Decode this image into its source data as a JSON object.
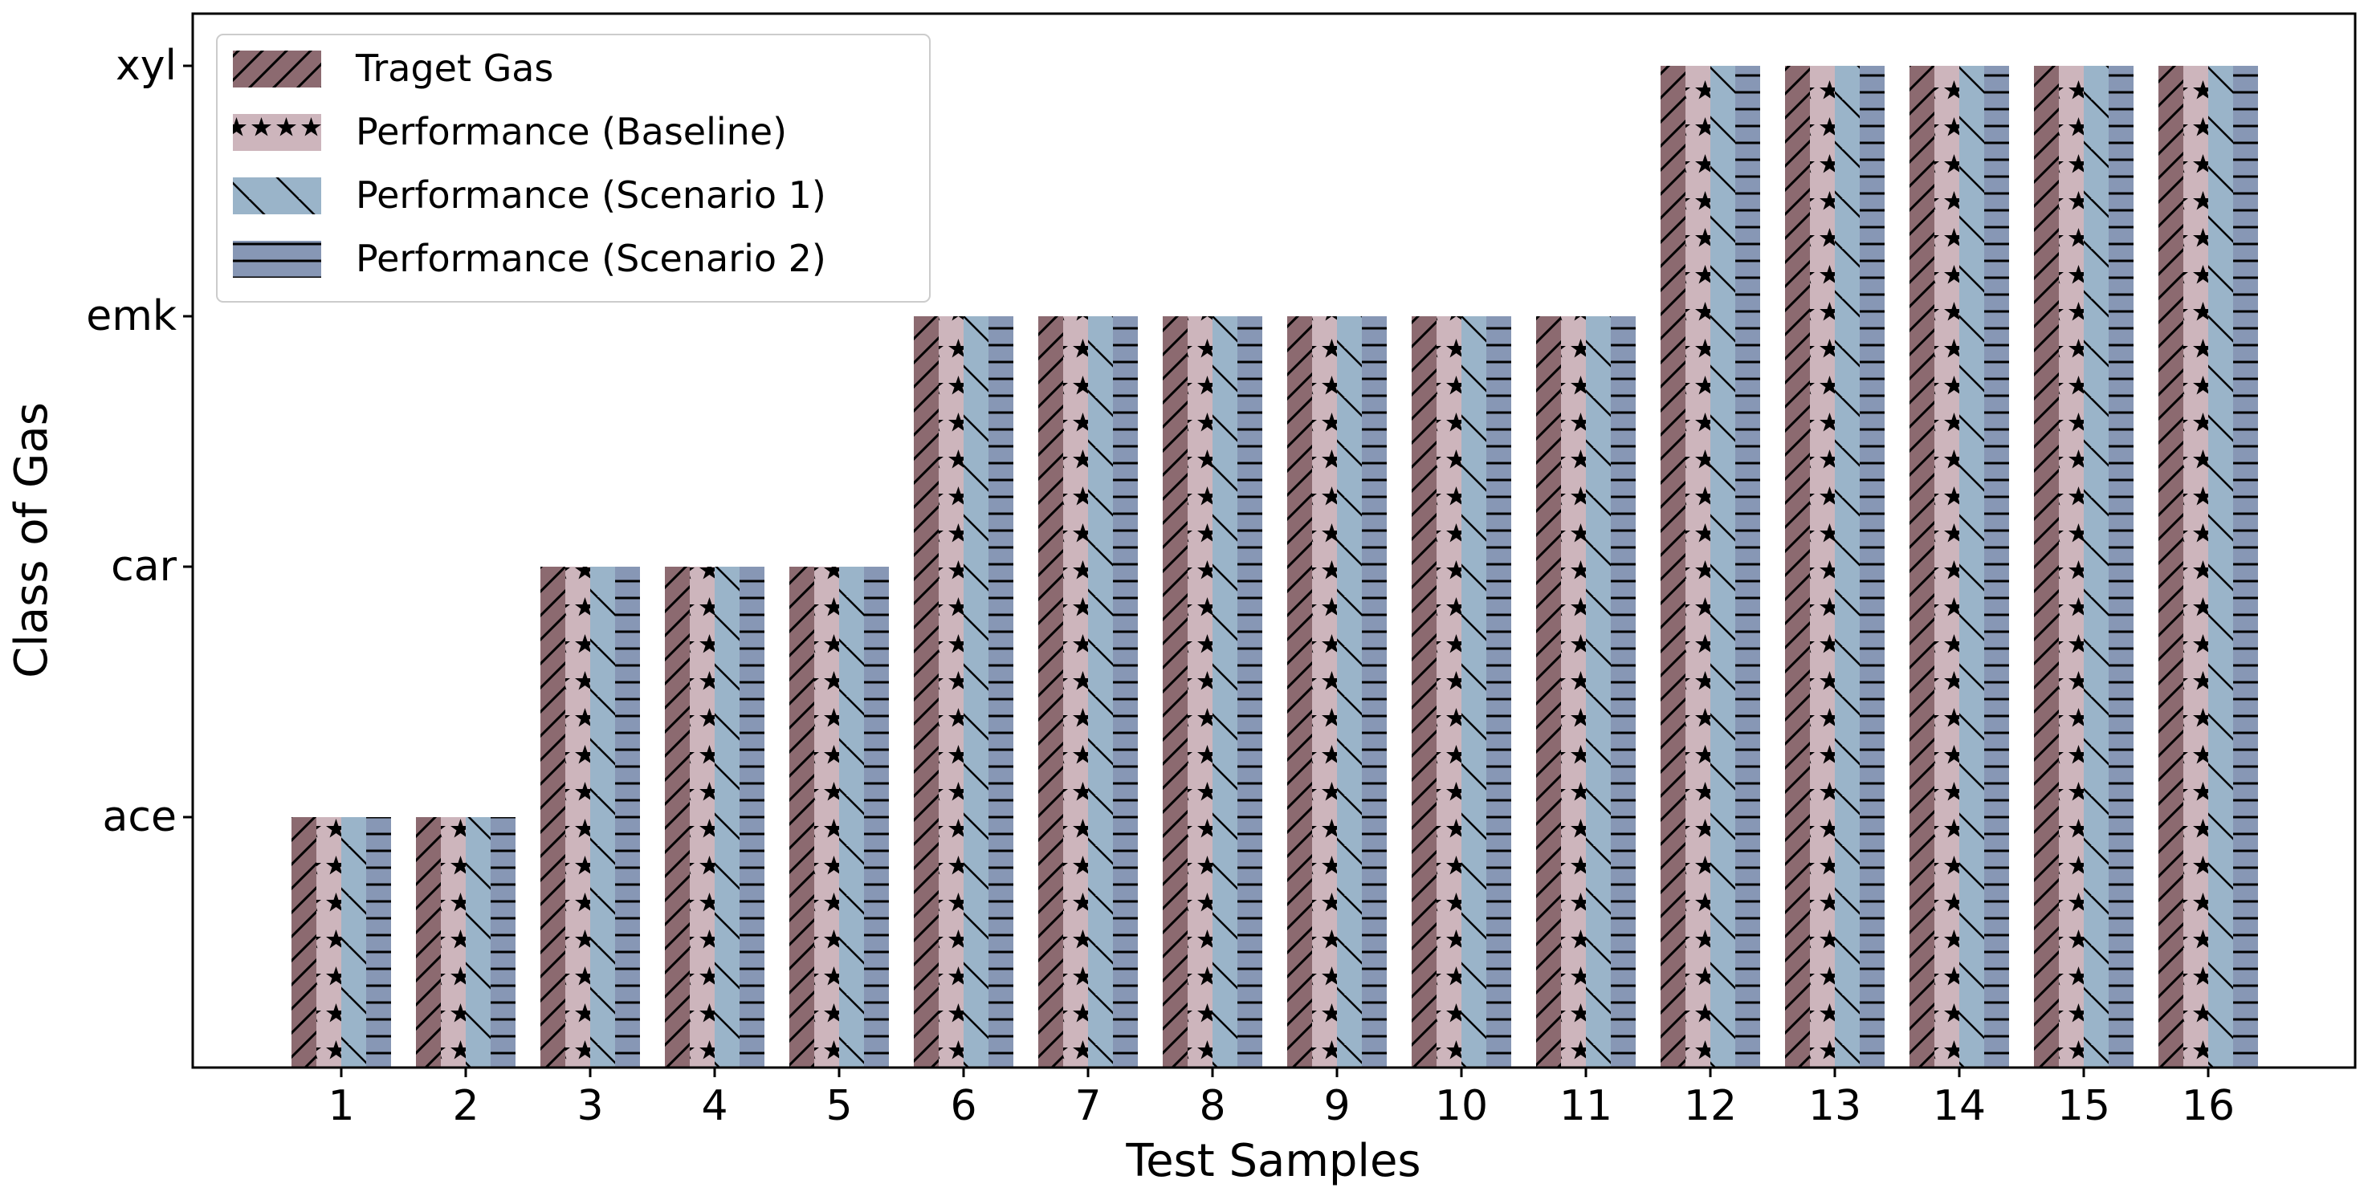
{
  "chart_data": {
    "type": "bar",
    "title": "",
    "xlabel": "Test Samples",
    "ylabel": "Class of Gas",
    "categories": [
      "1",
      "2",
      "3",
      "4",
      "5",
      "6",
      "7",
      "8",
      "9",
      "10",
      "11",
      "12",
      "13",
      "14",
      "15",
      "16"
    ],
    "y_tick_labels": [
      "ace",
      "car",
      "emk",
      "xyl"
    ],
    "ylim": [
      0,
      4
    ],
    "legend_position": "top-left",
    "series": [
      {
        "name": "Traget Gas",
        "color": "#8c6a70",
        "pattern": "diagonal",
        "values": [
          1,
          1,
          2,
          2,
          2,
          3,
          3,
          3,
          3,
          3,
          3,
          4,
          4,
          4,
          4,
          4
        ]
      },
      {
        "name": "Performance (Baseline)",
        "color": "#cdb5bc",
        "pattern": "stars",
        "values": [
          1,
          1,
          2,
          2,
          2,
          3,
          3,
          3,
          3,
          3,
          3,
          4,
          4,
          4,
          4,
          4
        ]
      },
      {
        "name": "Performance (Scenario 1)",
        "color": "#9ab4c9",
        "pattern": "backslash",
        "values": [
          1,
          1,
          2,
          2,
          2,
          3,
          3,
          3,
          3,
          3,
          3,
          4,
          4,
          4,
          4,
          4
        ]
      },
      {
        "name": "Performance (Scenario 2)",
        "color": "#8797b5",
        "pattern": "horizontal",
        "values": [
          1,
          1,
          2,
          2,
          2,
          3,
          3,
          3,
          3,
          3,
          3,
          4,
          4,
          4,
          4,
          4
        ]
      }
    ]
  }
}
